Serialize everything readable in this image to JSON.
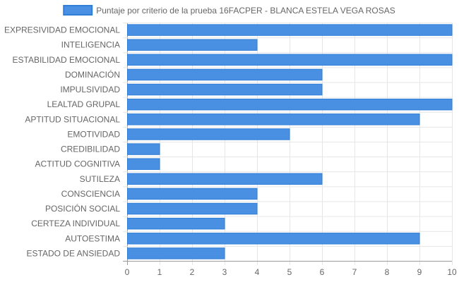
{
  "chart_data": {
    "type": "bar",
    "orientation": "horizontal",
    "legend": {
      "position": "top",
      "entries": [
        "Puntaje por criterio de la prueba 16FACPER - BLANCA ESTELA VEGA ROSAS"
      ]
    },
    "categories": [
      "EXPRESIVIDAD EMOCIONAL",
      "INTELIGENCIA",
      "ESTABILIDAD EMOCIONAL",
      "DOMINACIÓN",
      "IMPULSIVIDAD",
      "LEALTAD GRUPAL",
      "APTITUD SITUACIONAL",
      "EMOTIVIDAD",
      "CREDIBILIDAD",
      "ACTITUD COGNITIVA",
      "SUTILEZA",
      "CONSCIENCIA",
      "POSICIÓN SOCIAL",
      "CERTEZA INDIVIDUAL",
      "AUTOESTIMA",
      "ESTADO DE ANSIEDAD"
    ],
    "series": [
      {
        "name": "Puntaje por criterio de la prueba 16FACPER - BLANCA ESTELA VEGA ROSAS",
        "values": [
          10,
          4,
          10,
          6,
          6,
          10,
          9,
          5,
          1,
          1,
          6,
          4,
          4,
          3,
          9,
          3
        ],
        "color": "#4a90e2",
        "border_color": "#2f7fd8"
      }
    ],
    "xlim": [
      0,
      10
    ],
    "x_ticks": [
      "0",
      "1",
      "2",
      "3",
      "4",
      "5",
      "6",
      "7",
      "8",
      "9",
      "10"
    ],
    "grid": true,
    "grid_color": "#e6e6e6",
    "axis_color": "#999999"
  }
}
